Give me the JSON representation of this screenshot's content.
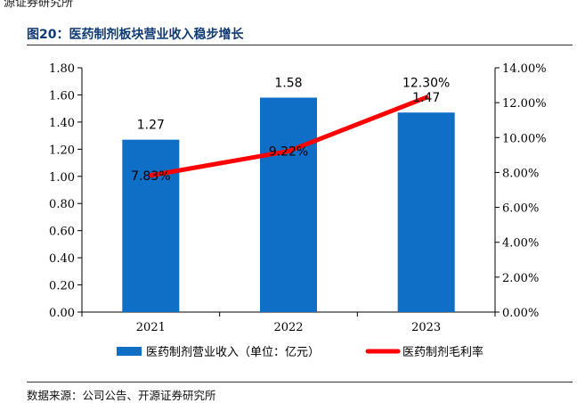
{
  "header": {
    "top_source_text": "源证券研究所",
    "figure_title": "图20：医药制剂板块营业收入稳步增长"
  },
  "footer": {
    "source_note": "数据来源：公司公告、开源证券研究所"
  },
  "chart_data": {
    "type": "bar",
    "title": "图20：医药制剂板块营业收入稳步增长",
    "categories": [
      "2021",
      "2022",
      "2023"
    ],
    "series": [
      {
        "name": "医药制剂营业收入（单位：亿元）",
        "type": "bar",
        "axis": "left",
        "values": [
          1.27,
          1.58,
          1.47
        ],
        "labels": [
          "1.27",
          "1.58",
          "1.47"
        ],
        "color": "#0f6fc6"
      },
      {
        "name": "医药制剂毛利率",
        "type": "line",
        "axis": "right",
        "values": [
          7.83,
          9.22,
          12.3
        ],
        "labels": [
          "7.83%",
          "9.22%",
          "12.30%"
        ],
        "color": "#ff0000"
      }
    ],
    "y_left": {
      "min": 0,
      "max": 1.8,
      "step": 0.2,
      "ticks": [
        "0.00",
        "0.20",
        "0.40",
        "0.60",
        "0.80",
        "1.00",
        "1.20",
        "1.40",
        "1.60",
        "1.80"
      ]
    },
    "y_right": {
      "min": 0,
      "max": 14,
      "step": 2,
      "ticks": [
        "0.00%",
        "2.00%",
        "4.00%",
        "6.00%",
        "8.00%",
        "10.00%",
        "12.00%",
        "14.00%"
      ]
    },
    "grid": false,
    "legend": "bottom"
  }
}
